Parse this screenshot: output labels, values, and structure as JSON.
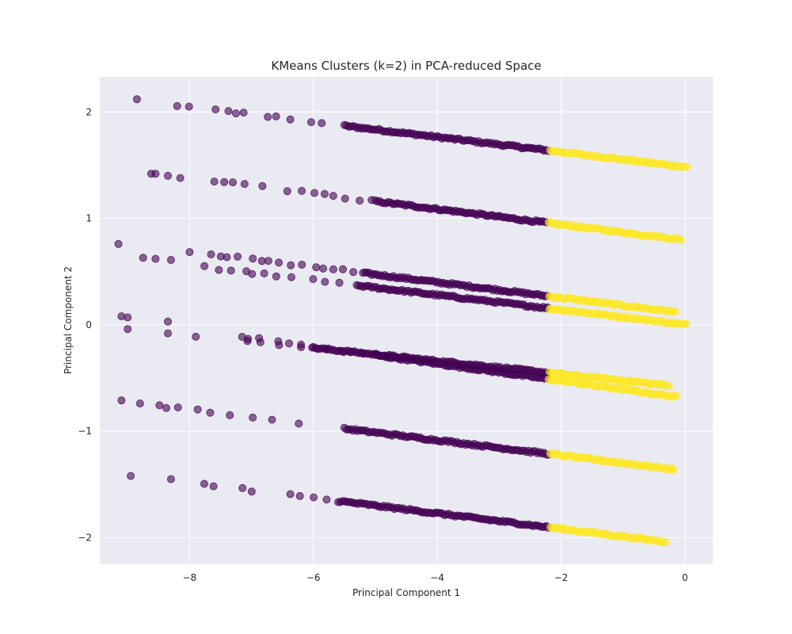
{
  "chart_data": {
    "type": "scatter",
    "title": "KMeans Clusters (k=2) in PCA-reduced Space",
    "xlabel": "Principal Component 1",
    "ylabel": "Principal Component 2",
    "xlim": [
      -9.45,
      0.45
    ],
    "ylim": [
      -2.25,
      2.33
    ],
    "xticks": [
      -8,
      -6,
      -4,
      -2,
      0
    ],
    "yticks": [
      -2,
      -1,
      0,
      1,
      2
    ],
    "xtick_labels": [
      "−8",
      "−6",
      "−4",
      "−2",
      "0"
    ],
    "ytick_labels": [
      "−2",
      "−1",
      "0",
      "1",
      "2"
    ],
    "grid": true,
    "background": "#eaeaf2",
    "colors": {
      "cluster_0": "#440154",
      "cluster_1": "#fde725"
    },
    "marker_alpha": 0.6,
    "split_x": -2.2,
    "bands": [
      {
        "x_start": -8.2,
        "y_start": 2.06,
        "x_end": 0.05,
        "y_end": 1.48,
        "dense_from": -5.5
      },
      {
        "x_start": -7.6,
        "y_start": 1.35,
        "x_end": -0.05,
        "y_end": 0.8,
        "dense_from": -5.0
      },
      {
        "x_start": -8.0,
        "y_start": 0.69,
        "x_end": -0.15,
        "y_end": 0.12,
        "dense_from": -5.2
      },
      {
        "x_start": -7.9,
        "y_start": 0.55,
        "x_end": 0.05,
        "y_end": 0.0,
        "dense_from": -5.3
      },
      {
        "x_start": -7.9,
        "y_start": -0.1,
        "x_end": -0.25,
        "y_end": -0.57,
        "dense_from": -6.0
      },
      {
        "x_start": -7.3,
        "y_start": -0.1,
        "x_end": -0.1,
        "y_end": -0.68,
        "dense_from": -5.0
      },
      {
        "x_start": -8.8,
        "y_start": -0.74,
        "x_end": -0.15,
        "y_end": -1.36,
        "dense_from": -5.5
      },
      {
        "x_start": -8.3,
        "y_start": -1.46,
        "x_end": -0.3,
        "y_end": -2.04,
        "dense_from": -5.6
      }
    ],
    "outliers": [
      [
        -8.85,
        2.12
      ],
      [
        -8.62,
        1.42
      ],
      [
        -8.55,
        1.42
      ],
      [
        -8.35,
        1.4
      ],
      [
        -8.15,
        1.38
      ],
      [
        -9.15,
        0.76
      ],
      [
        -8.75,
        0.63
      ],
      [
        -8.55,
        0.62
      ],
      [
        -8.3,
        0.61
      ],
      [
        -9.1,
        0.08
      ],
      [
        -9.0,
        0.07
      ],
      [
        -9.0,
        -0.04
      ],
      [
        -8.35,
        0.03
      ],
      [
        -8.35,
        -0.08
      ],
      [
        -9.1,
        -0.71
      ],
      [
        -8.95,
        -1.42
      ]
    ]
  }
}
